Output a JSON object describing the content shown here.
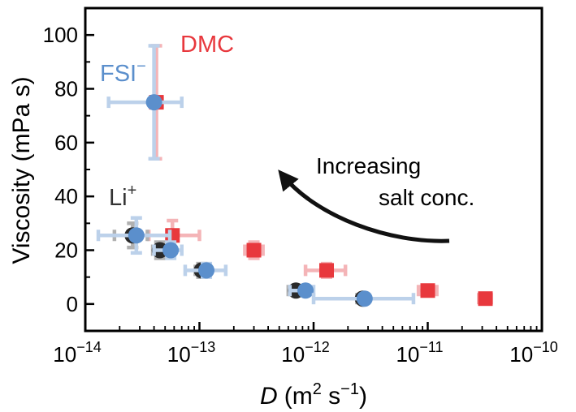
{
  "chart_data": {
    "type": "scatter",
    "title": "",
    "xlabel": {
      "italic": "D",
      "unit_base": "(m",
      "unit_sup1": "2",
      "unit_mid": " s",
      "unit_sup2": "−1",
      "unit_end": ")"
    },
    "ylabel": "Viscosity (mPa s)",
    "xscale": "log",
    "xlim": [
      1e-14,
      1e-10
    ],
    "ylim": [
      -10,
      110
    ],
    "x_ticks": [
      {
        "value": 1e-14,
        "base": "10",
        "exp": "−14"
      },
      {
        "value": 1e-13,
        "base": "10",
        "exp": "−13"
      },
      {
        "value": 1e-12,
        "base": "10",
        "exp": "−12"
      },
      {
        "value": 1e-11,
        "base": "10",
        "exp": "−11"
      },
      {
        "value": 1e-10,
        "base": "10",
        "exp": "−10"
      }
    ],
    "y_ticks": [
      0,
      20,
      40,
      60,
      80,
      100
    ],
    "colors": {
      "DMC": "#e8383d",
      "DMC_err": "#f4b4b7",
      "FSI": "#5b8fcc",
      "FSI_err": "#bcd1ea",
      "Li": "#2a2a2a",
      "Li_err": "#b0b0b0"
    },
    "series": [
      {
        "name": "DMC",
        "marker": "square",
        "points": [
          {
            "x": 4.2e-14,
            "y": 75,
            "xlo": 3.8e-14,
            "xhi": 4.7e-14,
            "ylo": 54,
            "yhi": 96
          },
          {
            "x": 5.8e-14,
            "y": 25.5,
            "xlo": 3.6e-14,
            "xhi": 1e-13,
            "ylo": 20,
            "yhi": 31
          },
          {
            "x": 3e-13,
            "y": 20,
            "xlo": 2.5e-13,
            "xhi": 3.6e-13,
            "ylo": 17,
            "yhi": 23
          },
          {
            "x": 1.3e-12,
            "y": 12.5,
            "xlo": 8.5e-13,
            "xhi": 1.9e-12,
            "ylo": 10,
            "yhi": 15
          },
          {
            "x": 1e-11,
            "y": 5,
            "xlo": 8.3e-12,
            "xhi": 1.2e-11,
            "ylo": 3.5,
            "yhi": 6.5
          },
          {
            "x": 3.2e-11,
            "y": 2,
            "xlo": 2.8e-11,
            "xhi": 3.6e-11,
            "ylo": 0.5,
            "yhi": 3.5
          }
        ]
      },
      {
        "name": "Li+",
        "marker": "circle",
        "points": [
          {
            "x": 2.6e-14,
            "y": 25.5,
            "xlo": 1.8e-14,
            "xhi": 3.5e-14,
            "ylo": 21,
            "yhi": 30
          },
          {
            "x": 4.5e-14,
            "y": 20,
            "xlo": 3.9e-14,
            "xhi": 5.1e-14,
            "ylo": 17,
            "yhi": 23
          },
          {
            "x": 1.05e-13,
            "y": 12.5,
            "xlo": 9.2e-14,
            "xhi": 1.18e-13,
            "ylo": 10,
            "yhi": 15
          },
          {
            "x": 7e-13,
            "y": 5,
            "xlo": 6e-13,
            "xhi": 8e-13,
            "ylo": 3.5,
            "yhi": 6.5
          },
          {
            "x": 2.7e-12,
            "y": 2,
            "xlo": 2.4e-12,
            "xhi": 3e-12,
            "ylo": 0.5,
            "yhi": 3.5
          }
        ]
      },
      {
        "name": "FSI−",
        "marker": "circle",
        "points": [
          {
            "x": 4e-14,
            "y": 75,
            "xlo": 1.6e-14,
            "xhi": 7e-14,
            "ylo": 54,
            "yhi": 96
          },
          {
            "x": 2.8e-14,
            "y": 25.5,
            "xlo": 1.3e-14,
            "xhi": 5.5e-14,
            "ylo": 19,
            "yhi": 32
          },
          {
            "x": 5.6e-14,
            "y": 20,
            "xlo": 4e-14,
            "xhi": 7e-14,
            "ylo": 17,
            "yhi": 23
          },
          {
            "x": 1.15e-13,
            "y": 12.5,
            "xlo": 7.5e-14,
            "xhi": 1.7e-13,
            "ylo": 10,
            "yhi": 15
          },
          {
            "x": 8.5e-13,
            "y": 5,
            "xlo": 6.2e-13,
            "xhi": 1e-12,
            "ylo": 3.5,
            "yhi": 6.5
          },
          {
            "x": 2.8e-12,
            "y": 2,
            "xlo": 1e-12,
            "xhi": 7.5e-12,
            "ylo": 0.5,
            "yhi": 3.5
          }
        ]
      }
    ],
    "labels": {
      "dmc": "DMC",
      "fsi_base": "FSI",
      "fsi_sup": "−",
      "li_base": "Li",
      "li_sup": "+"
    },
    "annotation": {
      "line1": "Increasing",
      "line2": "salt conc."
    }
  }
}
